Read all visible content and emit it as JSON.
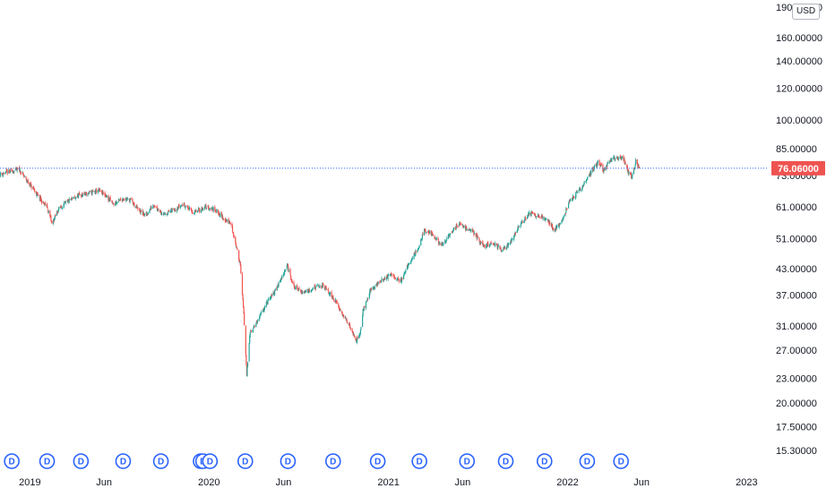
{
  "colors": {
    "up": "#26a69a",
    "down": "#ef5350",
    "dividend_marker": "#2962ff",
    "price_line": "#2962ff",
    "last_price_bg": "#ef5350",
    "axis_text": "#131722"
  },
  "currency_label": "USD",
  "last_price_label": "76.06000",
  "chart_data": {
    "type": "candlestick",
    "y_scale": "log",
    "ylim": [
      14.9,
      190
    ],
    "last_price": 76.06,
    "y_ticks": [
      {
        "value": 190,
        "label": "190.00000"
      },
      {
        "value": 160,
        "label": "160.00000"
      },
      {
        "value": 140,
        "label": "140.00000"
      },
      {
        "value": 120,
        "label": "120.00000"
      },
      {
        "value": 100,
        "label": "100.00000"
      },
      {
        "value": 85,
        "label": "85.00000"
      },
      {
        "value": 73,
        "label": "73.00000"
      },
      {
        "value": 61,
        "label": "61.00000"
      },
      {
        "value": 51,
        "label": "51.00000"
      },
      {
        "value": 43,
        "label": "43.00000"
      },
      {
        "value": 37,
        "label": "37.00000"
      },
      {
        "value": 31,
        "label": "31.00000"
      },
      {
        "value": 27,
        "label": "27.00000"
      },
      {
        "value": 23,
        "label": "23.00000"
      },
      {
        "value": 20,
        "label": "20.00000"
      },
      {
        "value": 17.5,
        "label": "17.50000"
      },
      {
        "value": 15.3,
        "label": "15.30000"
      }
    ],
    "x_range": [
      "2018-11-01",
      "2023-02-15"
    ],
    "x_ticks": [
      {
        "date": "2019-01-01",
        "label": "2019"
      },
      {
        "date": "2019-06-01",
        "label": "Jun"
      },
      {
        "date": "2020-01-01",
        "label": "2020"
      },
      {
        "date": "2020-06-01",
        "label": "Jun"
      },
      {
        "date": "2021-01-01",
        "label": "2021"
      },
      {
        "date": "2021-06-01",
        "label": "Jun"
      },
      {
        "date": "2022-01-01",
        "label": "2022"
      },
      {
        "date": "2022-06-01",
        "label": "Jun"
      },
      {
        "date": "2023-01-01",
        "label": "2023"
      }
    ],
    "price_path": [
      [
        "2018-11-01",
        73.5
      ],
      [
        "2018-11-20",
        74.5
      ],
      [
        "2018-12-10",
        75.5
      ],
      [
        "2018-12-25",
        71.0
      ],
      [
        "2019-01-10",
        67.0
      ],
      [
        "2019-01-25",
        63.0
      ],
      [
        "2019-02-05",
        61.0
      ],
      [
        "2019-02-15",
        55.5
      ],
      [
        "2019-03-01",
        60.5
      ],
      [
        "2019-03-20",
        63.0
      ],
      [
        "2019-04-10",
        65.0
      ],
      [
        "2019-05-01",
        66.0
      ],
      [
        "2019-05-20",
        67.0
      ],
      [
        "2019-06-05",
        65.0
      ],
      [
        "2019-06-20",
        62.0
      ],
      [
        "2019-07-10",
        64.0
      ],
      [
        "2019-07-25",
        63.5
      ],
      [
        "2019-08-10",
        60.0
      ],
      [
        "2019-08-25",
        58.0
      ],
      [
        "2019-09-10",
        62.0
      ],
      [
        "2019-10-01",
        58.5
      ],
      [
        "2019-10-20",
        60.0
      ],
      [
        "2019-11-10",
        62.0
      ],
      [
        "2019-12-01",
        59.0
      ],
      [
        "2019-12-25",
        61.0
      ],
      [
        "2020-01-15",
        60.0
      ],
      [
        "2020-01-31",
        57.0
      ],
      [
        "2020-02-15",
        55.5
      ],
      [
        "2020-02-25",
        49.0
      ],
      [
        "2020-03-05",
        44.0
      ],
      [
        "2020-03-12",
        33.0
      ],
      [
        "2020-03-18",
        23.5
      ],
      [
        "2020-03-25",
        30.0
      ],
      [
        "2020-04-10",
        32.0
      ],
      [
        "2020-04-25",
        35.0
      ],
      [
        "2020-05-10",
        37.0
      ],
      [
        "2020-05-25",
        40.0
      ],
      [
        "2020-06-08",
        44.0
      ],
      [
        "2020-06-20",
        39.0
      ],
      [
        "2020-07-10",
        37.5
      ],
      [
        "2020-08-01",
        38.5
      ],
      [
        "2020-08-20",
        39.0
      ],
      [
        "2020-09-10",
        36.5
      ],
      [
        "2020-09-25",
        34.0
      ],
      [
        "2020-10-10",
        31.5
      ],
      [
        "2020-10-28",
        28.5
      ],
      [
        "2020-11-05",
        30.0
      ],
      [
        "2020-11-10",
        34.0
      ],
      [
        "2020-11-25",
        38.0
      ],
      [
        "2020-12-15",
        40.0
      ],
      [
        "2021-01-05",
        41.5
      ],
      [
        "2021-01-25",
        40.0
      ],
      [
        "2021-02-15",
        45.0
      ],
      [
        "2021-03-05",
        49.0
      ],
      [
        "2021-03-15",
        53.5
      ],
      [
        "2021-04-01",
        52.0
      ],
      [
        "2021-04-20",
        49.0
      ],
      [
        "2021-05-10",
        53.0
      ],
      [
        "2021-05-25",
        55.5
      ],
      [
        "2021-06-10",
        54.0
      ],
      [
        "2021-06-25",
        52.5
      ],
      [
        "2021-07-15",
        48.5
      ],
      [
        "2021-08-01",
        50.0
      ],
      [
        "2021-08-20",
        47.5
      ],
      [
        "2021-09-05",
        49.5
      ],
      [
        "2021-09-25",
        55.0
      ],
      [
        "2021-10-15",
        59.0
      ],
      [
        "2021-11-05",
        58.0
      ],
      [
        "2021-11-25",
        56.0
      ],
      [
        "2021-12-05",
        53.5
      ],
      [
        "2021-12-20",
        56.0
      ],
      [
        "2022-01-05",
        63.0
      ],
      [
        "2022-01-20",
        66.0
      ],
      [
        "2022-02-05",
        70.0
      ],
      [
        "2022-02-20",
        75.0
      ],
      [
        "2022-03-05",
        79.0
      ],
      [
        "2022-03-15",
        75.0
      ],
      [
        "2022-03-28",
        79.0
      ],
      [
        "2022-04-10",
        81.0
      ],
      [
        "2022-04-25",
        80.0
      ],
      [
        "2022-05-05",
        74.0
      ],
      [
        "2022-05-12",
        72.0
      ],
      [
        "2022-05-20",
        79.0
      ],
      [
        "2022-05-27",
        76.06
      ]
    ],
    "dividend_marker_label": "D",
    "dividend_markers": [
      "2018-11-25",
      "2019-02-05",
      "2019-04-15",
      "2019-07-10",
      "2019-09-25",
      "2019-12-15",
      "2019-12-20",
      "2020-01-03",
      "2020-03-15",
      "2020-06-10",
      "2020-09-10",
      "2020-12-10",
      "2021-03-05",
      "2021-06-10",
      "2021-08-28",
      "2021-11-15",
      "2022-02-10",
      "2022-04-20"
    ]
  }
}
